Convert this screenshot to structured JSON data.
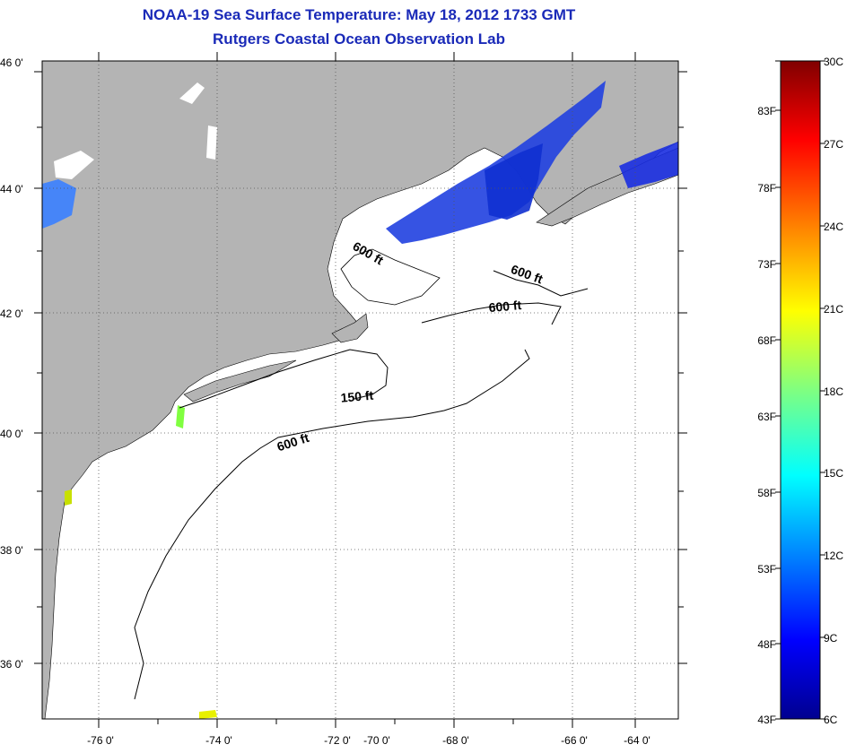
{
  "title": "NOAA-19 Sea Surface Temperature:  May 18, 2012 1733 GMT",
  "subtitle": "Rutgers Coastal Ocean Observation Lab",
  "map": {
    "lat_labels": [
      "46 0'",
      "44 0'",
      "42 0'",
      "40 0'",
      "38 0'",
      "36 0'"
    ],
    "lon_labels": [
      "-76 0'",
      "-74 0'",
      "-72 0'",
      "-70 0'",
      "-68 0'",
      "-66 0'",
      "-64 0'"
    ],
    "land_color": "#b4b4b4",
    "water_color": "#ffffff",
    "contours": [
      {
        "label": "600 ft"
      },
      {
        "label": "600 ft"
      },
      {
        "label": "600 ft"
      },
      {
        "label": "150 ft"
      },
      {
        "label": "600 ft"
      }
    ]
  },
  "colorbar": {
    "celsius": [
      "30C",
      "27C",
      "24C",
      "21C",
      "18C",
      "15C",
      "12C",
      "9C",
      "6C"
    ],
    "fahrenheit": [
      "83F",
      "78F",
      "73F",
      "68F",
      "63F",
      "58F",
      "53F",
      "48F",
      "43F"
    ],
    "colors": [
      "#00008f",
      "#0000ff",
      "#0080ff",
      "#00ffff",
      "#80ff80",
      "#ffff00",
      "#ff8000",
      "#ff0000",
      "#800000"
    ]
  }
}
